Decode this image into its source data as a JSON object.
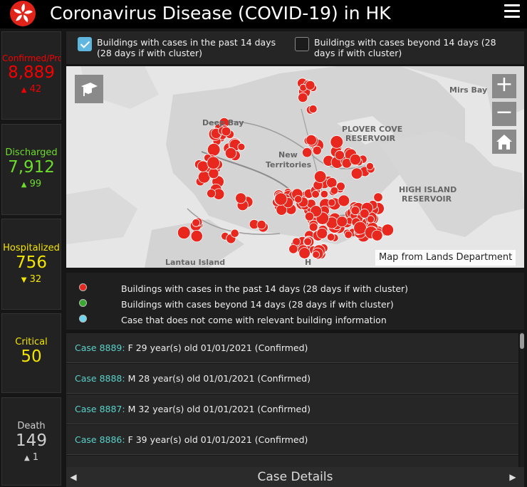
{
  "header": {
    "title": "Coronavirus Disease (COVID-19) in HK",
    "logo_icon": "hk-bauhinia-icon",
    "menu_icon": "hamburger-menu-icon"
  },
  "stats": [
    {
      "label": "Confirmed/Prob",
      "value": "8,889",
      "delta_icon": "triangle-up-icon",
      "delta_glyph": "▲",
      "delta": "42",
      "color": "#f40000"
    },
    {
      "label": "Discharged",
      "value": "7,912",
      "delta_icon": "triangle-up-icon",
      "delta_glyph": "▲",
      "delta": "99",
      "color": "#6cdb2d"
    },
    {
      "label": "Hospitalized",
      "value": "756",
      "delta_icon": "triangle-down-icon",
      "delta_glyph": "▼",
      "delta": "32",
      "color": "#f3e500"
    },
    {
      "label": "Critical",
      "value": "50",
      "color": "#f3e500"
    },
    {
      "label": "Death",
      "value": "149",
      "delta_icon": "triangle-up-icon",
      "delta_glyph": "▲",
      "delta": "1",
      "color": "#cfcfcf"
    }
  ],
  "filters": {
    "past_14": {
      "checked": true,
      "line1": "Buildings with cases in the past 14 days",
      "line2": "(28 days if with cluster)"
    },
    "beyond_14": {
      "checked": false,
      "line1": "Buildings with cases beyond 14 days (28",
      "line2": "days if with cluster)"
    }
  },
  "map": {
    "attribution": "Map from Lands Department",
    "places": [
      "Deep Bay",
      "New",
      "Territories",
      "PLOVER COVE",
      "RESERVOIR",
      "HIGH ISLAND",
      "RESERVOIR",
      "Mirs Bay",
      "Lantau Island",
      "H"
    ],
    "controls": {
      "zoom_in": "+",
      "zoom_out": "−"
    },
    "case_marker_color": "#e8281f"
  },
  "legend": [
    {
      "color": "#e8281f",
      "label": "Buildings with cases in the past 14 days (28 days if with cluster)"
    },
    {
      "color": "#3aa830",
      "label": "Buildings with cases beyond 14 days (28 days if with cluster)"
    },
    {
      "color": "#6fd5ee",
      "label": "Case that does not come with relevant building information"
    }
  ],
  "cases": [
    {
      "id": "Case 8889:",
      "detail": " F  29 year(s) old  01/01/2021 (Confirmed)"
    },
    {
      "id": "Case 8888:",
      "detail": " M  28 year(s) old  01/01/2021 (Confirmed)"
    },
    {
      "id": "Case 8887:",
      "detail": " M  32 year(s) old  01/01/2021 (Confirmed)"
    },
    {
      "id": "Case 8886:",
      "detail": " F  39 year(s) old  01/01/2021 (Confirmed)"
    },
    {
      "id": "",
      "detail": ""
    }
  ],
  "footer": {
    "title": "Case Details",
    "prev_glyph": "◀",
    "next_glyph": "▶"
  }
}
